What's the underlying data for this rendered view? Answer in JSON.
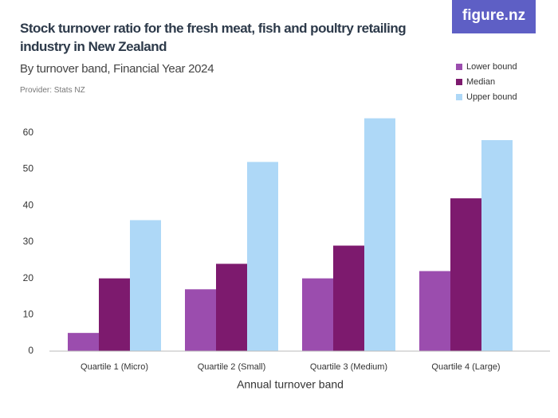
{
  "chart_data": {
    "type": "bar",
    "title": "Stock turnover ratio for the fresh meat, fish and poultry retailing industry in New Zealand",
    "subtitle": "By turnover band, Financial Year 2024",
    "source": "Provider: Stats NZ",
    "brand": "figure.nz",
    "x_label": "Annual turnover band",
    "categories": [
      "Quartile 1 (Micro)",
      "Quartile 2 (Small)",
      "Quartile 3 (Medium)",
      "Quartile 4 (Large)"
    ],
    "series": [
      {
        "name": "Lower bound",
        "color": "#9b4dae",
        "values": [
          5,
          17,
          20,
          22
        ]
      },
      {
        "name": "Median",
        "color": "#7d1a6e",
        "values": [
          20,
          24,
          29,
          42
        ]
      },
      {
        "name": "Upper bound",
        "color": "#aed8f7",
        "values": [
          36,
          52,
          64,
          58
        ]
      }
    ],
    "ylim": [
      0,
      65
    ],
    "yticks": [
      0,
      10,
      20,
      30,
      40,
      50,
      60
    ],
    "grid": false,
    "legend": "top-right"
  }
}
